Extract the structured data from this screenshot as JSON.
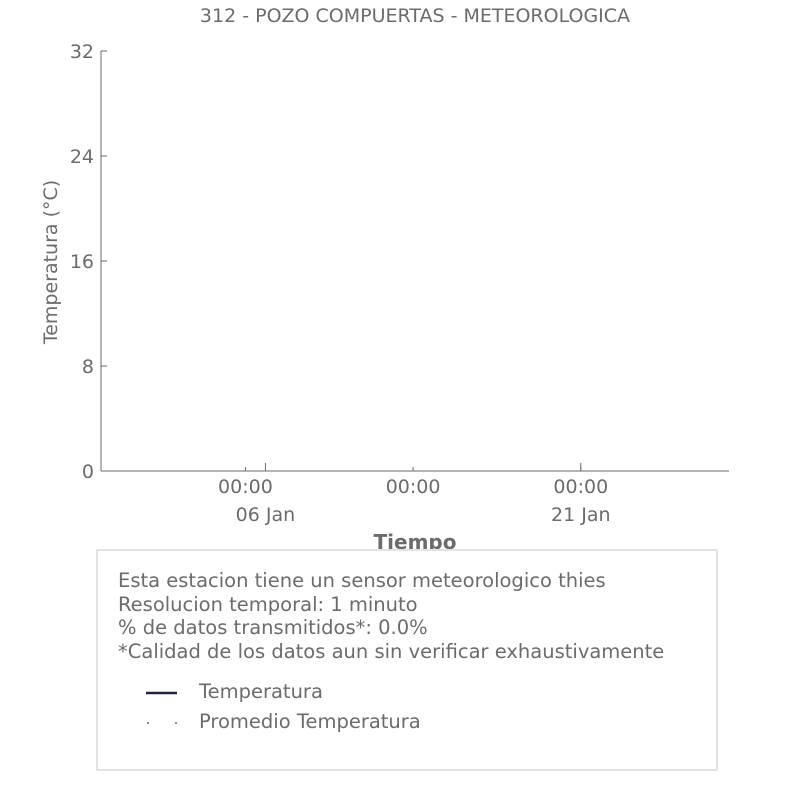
{
  "chart_data": {
    "type": "line",
    "title": "312 - POZO COMPUERTAS - METEOROLOGICA",
    "xlabel": "Tiempo",
    "ylabel": "Temperatura (°C)",
    "ylim": [
      0,
      32
    ],
    "yticks": [
      "0",
      "8",
      "16",
      "24",
      "32"
    ],
    "xticks": [
      {
        "time": "00:00",
        "date": "06 Jan"
      },
      {
        "time": "00:00",
        "date": ""
      },
      {
        "time": "00:00",
        "date": "21 Jan"
      }
    ],
    "series": [
      {
        "name": "Temperatura",
        "color": "#1f2340",
        "style": "solid",
        "values": []
      },
      {
        "name": "Promedio Temperatura",
        "color": "#6b6b6b",
        "style": "dotted",
        "values": []
      }
    ],
    "grid": false,
    "legend_position": "bottom"
  },
  "info": {
    "lines": [
      "Esta estacion tiene un sensor meteorologico thies",
      "Resolucion temporal: 1 minuto",
      "% de datos transmitidos*: 0.0%",
      "*Calidad de los datos aun sin verificar exhaustivamente"
    ]
  }
}
